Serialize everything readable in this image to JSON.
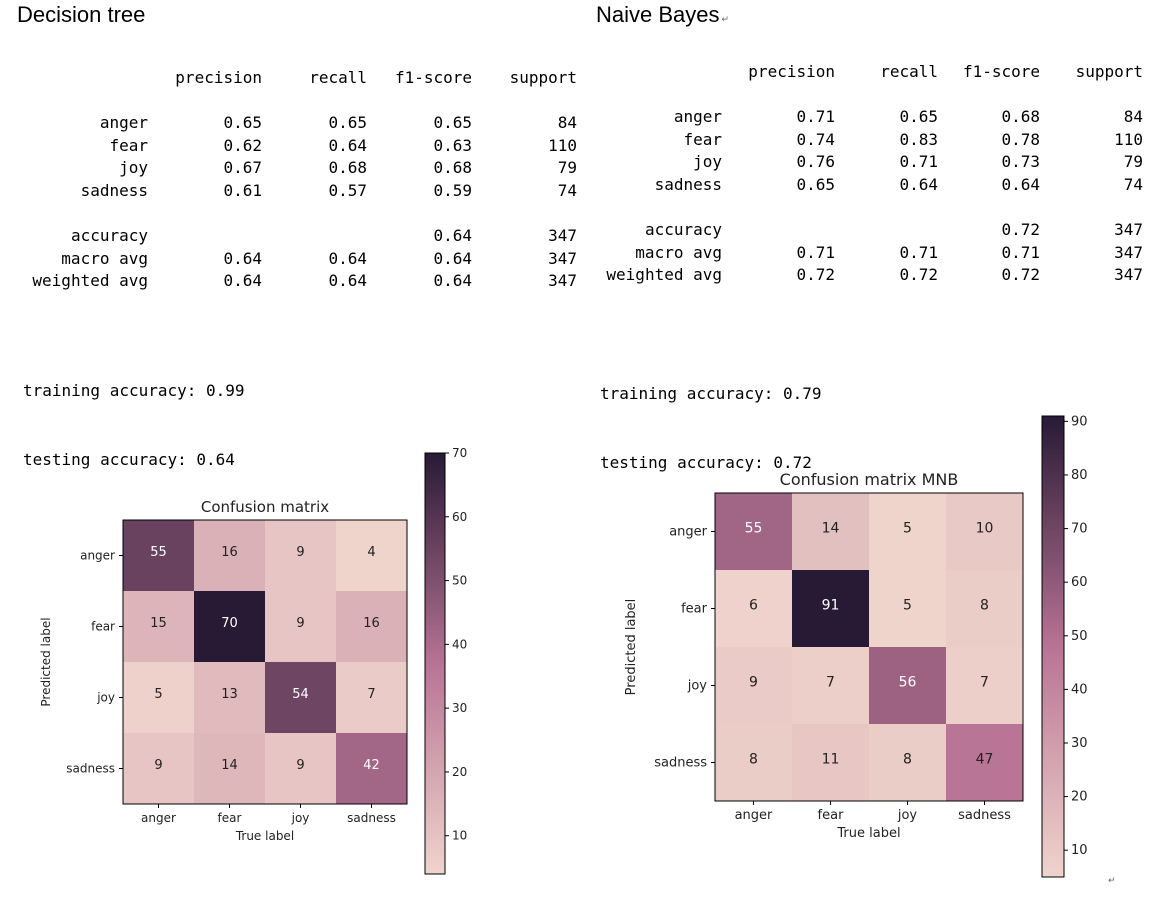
{
  "headings": {
    "left": "Decision tree",
    "right": "Naive Bayes"
  },
  "reports": [
    {
      "columns": [
        "precision",
        "recall",
        "f1-score",
        "support"
      ],
      "rows": [
        {
          "label": "anger",
          "precision": "0.65",
          "recall": "0.65",
          "f1": "0.65",
          "support": "84"
        },
        {
          "label": "fear",
          "precision": "0.62",
          "recall": "0.64",
          "f1": "0.63",
          "support": "110"
        },
        {
          "label": "joy",
          "precision": "0.67",
          "recall": "0.68",
          "f1": "0.68",
          "support": "79"
        },
        {
          "label": "sadness",
          "precision": "0.61",
          "recall": "0.57",
          "f1": "0.59",
          "support": "74"
        }
      ],
      "summary": [
        {
          "label": "accuracy",
          "precision": "",
          "recall": "",
          "f1": "0.64",
          "support": "347"
        },
        {
          "label": "macro avg",
          "precision": "0.64",
          "recall": "0.64",
          "f1": "0.64",
          "support": "347"
        },
        {
          "label": "weighted avg",
          "precision": "0.64",
          "recall": "0.64",
          "f1": "0.64",
          "support": "347"
        }
      ],
      "training_accuracy": "training accuracy: 0.99",
      "testing_accuracy": "testing accuracy: 0.64"
    },
    {
      "columns": [
        "precision",
        "recall",
        "f1-score",
        "support"
      ],
      "rows": [
        {
          "label": "anger",
          "precision": "0.71",
          "recall": "0.65",
          "f1": "0.68",
          "support": "84"
        },
        {
          "label": "fear",
          "precision": "0.74",
          "recall": "0.83",
          "f1": "0.78",
          "support": "110"
        },
        {
          "label": "joy",
          "precision": "0.76",
          "recall": "0.71",
          "f1": "0.73",
          "support": "79"
        },
        {
          "label": "sadness",
          "precision": "0.65",
          "recall": "0.64",
          "f1": "0.64",
          "support": "74"
        }
      ],
      "summary": [
        {
          "label": "accuracy",
          "precision": "",
          "recall": "",
          "f1": "0.72",
          "support": "347"
        },
        {
          "label": "macro avg",
          "precision": "0.71",
          "recall": "0.71",
          "f1": "0.71",
          "support": "347"
        },
        {
          "label": "weighted avg",
          "precision": "0.72",
          "recall": "0.72",
          "f1": "0.72",
          "support": "347"
        }
      ],
      "training_accuracy": "training accuracy: 0.79",
      "testing_accuracy": "testing accuracy: 0.72"
    }
  ],
  "chart_data": [
    {
      "type": "heatmap",
      "title": "Confusion matrix",
      "xlabel": "True label",
      "ylabel": "Predicted label",
      "x_categories": [
        "anger",
        "fear",
        "joy",
        "sadness"
      ],
      "y_categories": [
        "anger",
        "fear",
        "joy",
        "sadness"
      ],
      "values": [
        [
          55,
          16,
          9,
          4
        ],
        [
          15,
          70,
          9,
          16
        ],
        [
          5,
          13,
          54,
          7
        ],
        [
          9,
          14,
          9,
          42
        ]
      ],
      "colorbar": {
        "min": 4,
        "max": 70,
        "ticks": [
          10,
          20,
          30,
          40,
          50,
          60,
          70
        ]
      },
      "colormap": [
        "#efd4cc",
        "#281a35"
      ]
    },
    {
      "type": "heatmap",
      "title": "Confusion matrix MNB",
      "xlabel": "True label",
      "ylabel": "Predicted label",
      "x_categories": [
        "anger",
        "fear",
        "joy",
        "sadness"
      ],
      "y_categories": [
        "anger",
        "fear",
        "joy",
        "sadness"
      ],
      "values": [
        [
          55,
          14,
          5,
          10
        ],
        [
          6,
          91,
          5,
          8
        ],
        [
          9,
          7,
          56,
          7
        ],
        [
          8,
          11,
          8,
          47
        ]
      ],
      "colorbar": {
        "min": 5,
        "max": 91,
        "ticks": [
          10,
          20,
          30,
          40,
          50,
          60,
          70,
          80,
          90
        ]
      },
      "colormap": [
        "#efd4cc",
        "#281a35"
      ]
    }
  ]
}
